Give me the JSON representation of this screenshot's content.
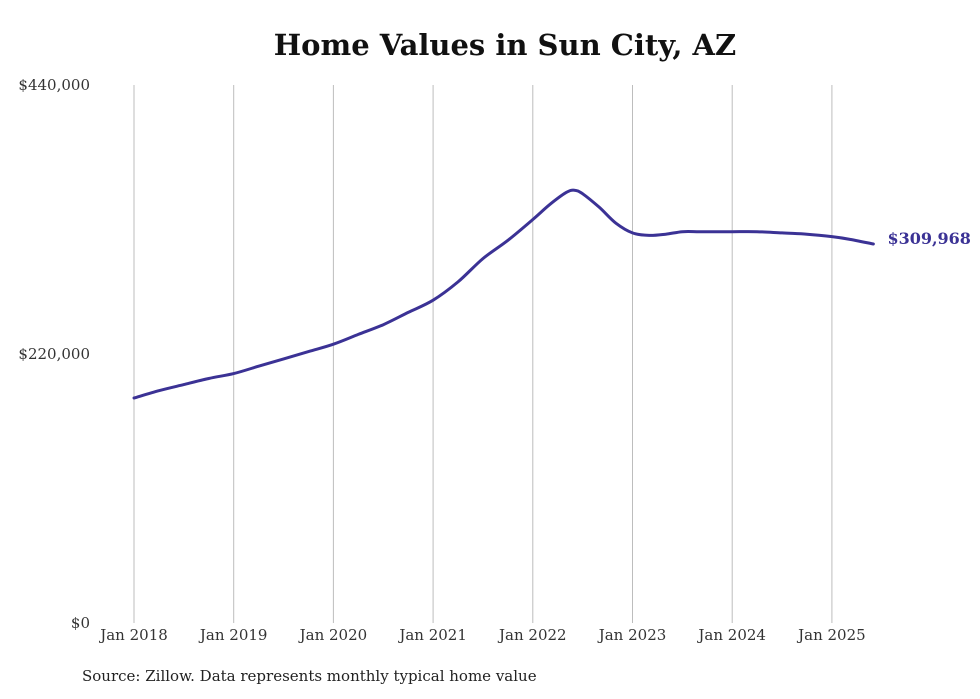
{
  "chart_data": {
    "type": "line",
    "title": "Home Values in Sun City, AZ",
    "xlabel": "",
    "ylabel": "",
    "y_ticks": [
      "$0",
      "$220,000",
      "$440,000"
    ],
    "ylim": [
      0,
      440000
    ],
    "x_ticks": [
      "Jan 2018",
      "Jan 2019",
      "Jan 2020",
      "Jan 2021",
      "Jan 2022",
      "Jan 2023",
      "Jan 2024",
      "Jan 2025"
    ],
    "grid": "vertical",
    "line_color": "#3b3295",
    "end_label": "$309,968",
    "series": [
      {
        "x": [
          "2018-01",
          "2018-04",
          "2018-07",
          "2018-10",
          "2019-01",
          "2019-04",
          "2019-07",
          "2019-10",
          "2020-01",
          "2020-04",
          "2020-07",
          "2020-10",
          "2021-01",
          "2021-04",
          "2021-07",
          "2021-10",
          "2022-01",
          "2022-03",
          "2022-05",
          "2022-06",
          "2022-07",
          "2022-09",
          "2022-11",
          "2023-01",
          "2023-03",
          "2023-05",
          "2023-07",
          "2023-09",
          "2023-11",
          "2024-01",
          "2024-04",
          "2024-07",
          "2024-10",
          "2025-01",
          "2025-03",
          "2025-06"
        ],
        "y": [
          184000,
          190000,
          195000,
          200000,
          204000,
          210000,
          216000,
          222000,
          228000,
          236000,
          244000,
          254000,
          264000,
          279000,
          298000,
          313000,
          330000,
          342000,
          352000,
          354000,
          351000,
          340000,
          327000,
          319000,
          317000,
          318000,
          320000,
          320000,
          320000,
          320000,
          320000,
          319000,
          318000,
          316000,
          314000,
          309968
        ]
      }
    ],
    "source": "Source: Zillow. Data represents monthly typical home value"
  }
}
